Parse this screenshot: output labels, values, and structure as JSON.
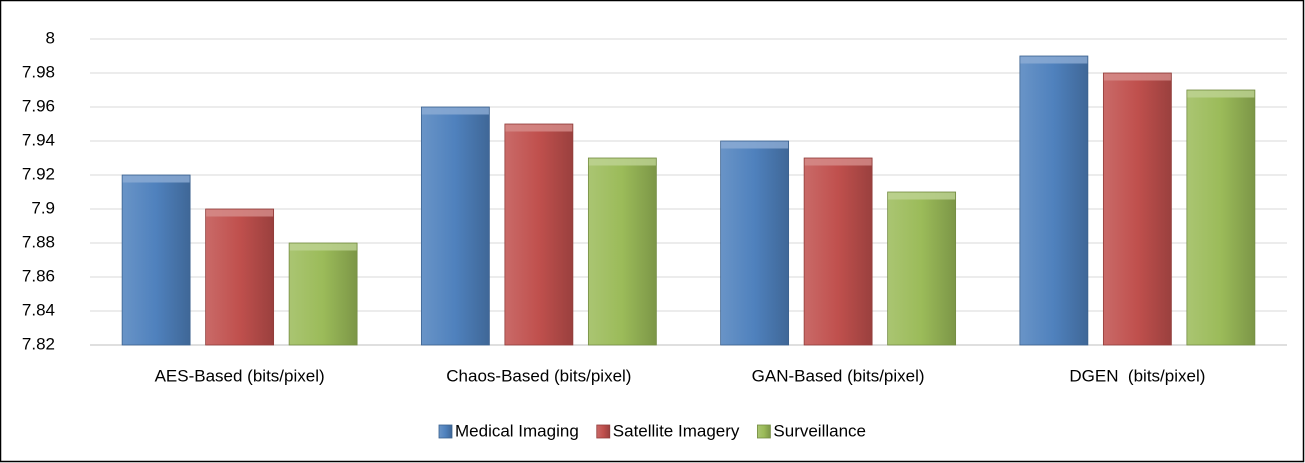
{
  "chart_data": {
    "type": "bar",
    "categories": [
      "AES-Based (bits/pixel)",
      "Chaos-Based (bits/pixel)",
      "GAN-Based (bits/pixel)",
      "DGEN  (bits/pixel)"
    ],
    "series": [
      {
        "name": "Medical Imaging",
        "color": "#4f81bd",
        "values": [
          7.92,
          7.96,
          7.94,
          7.99
        ]
      },
      {
        "name": "Satellite Imagery",
        "color": "#c0504d",
        "values": [
          7.9,
          7.95,
          7.93,
          7.98
        ]
      },
      {
        "name": "Surveillance",
        "color": "#9bbb59",
        "values": [
          7.88,
          7.93,
          7.91,
          7.97
        ]
      }
    ],
    "ylim": [
      7.82,
      8
    ],
    "yticks": [
      7.82,
      7.84,
      7.86,
      7.88,
      7.9,
      7.92,
      7.94,
      7.96,
      7.98,
      8
    ],
    "grid": true,
    "legend": "bottom"
  }
}
